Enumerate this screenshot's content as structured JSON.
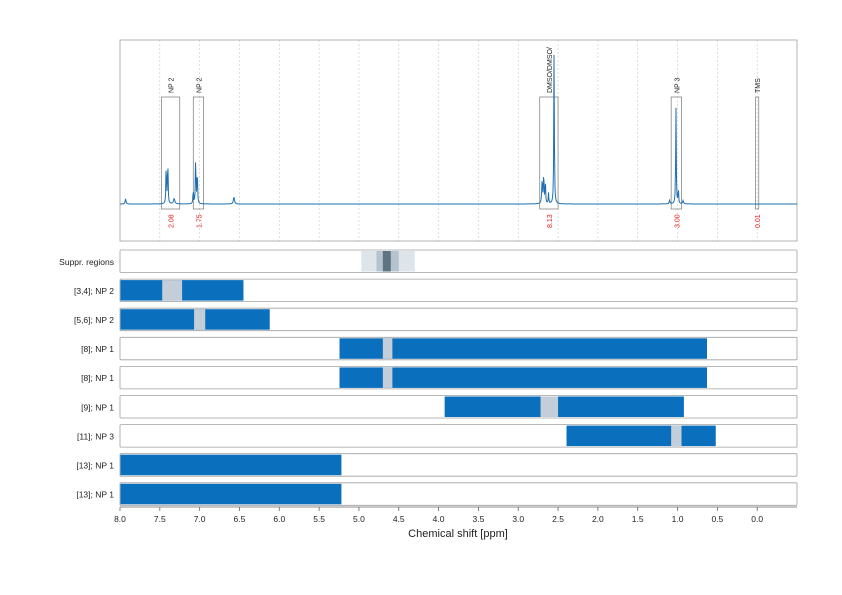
{
  "chart_data": {
    "type": "nmr_spectrum_with_range_tracks",
    "xlabel": "Chemical shift [ppm]",
    "xlim": [
      8.0,
      -0.5
    ],
    "x_reversed": true,
    "x_ticks": [
      8.0,
      7.5,
      7.0,
      6.5,
      6.0,
      5.5,
      5.0,
      4.5,
      4.0,
      3.5,
      3.0,
      2.5,
      2.0,
      1.5,
      1.0,
      0.5,
      0.0
    ],
    "x_tick_labels": [
      "8.0",
      "7.5",
      "7.0",
      "6.5",
      "6.0",
      "5.5",
      "5.0",
      "4.5",
      "4.0",
      "3.5",
      "3.0",
      "2.5",
      "2.0",
      "1.5",
      "1.0",
      "0.5",
      "0.0"
    ],
    "grid": true,
    "spectrum": {
      "color": "#1f6fb2",
      "peaks": [
        {
          "ppm": 7.93,
          "height": 0.03,
          "width": 0.006
        },
        {
          "ppm": 7.42,
          "height": 0.25,
          "width": 0.004
        },
        {
          "ppm": 7.4,
          "height": 0.28,
          "width": 0.004
        },
        {
          "ppm": 7.32,
          "height": 0.03,
          "width": 0.01
        },
        {
          "ppm": 7.08,
          "height": 0.09,
          "width": 0.004
        },
        {
          "ppm": 7.05,
          "height": 0.29,
          "width": 0.004
        },
        {
          "ppm": 7.03,
          "height": 0.22,
          "width": 0.004
        },
        {
          "ppm": 6.57,
          "height": 0.04,
          "width": 0.008
        },
        {
          "ppm": 2.7,
          "height": 0.13,
          "width": 0.006
        },
        {
          "ppm": 2.68,
          "height": 0.2,
          "width": 0.004
        },
        {
          "ppm": 2.66,
          "height": 0.14,
          "width": 0.004
        },
        {
          "ppm": 2.62,
          "height": 0.06,
          "width": 0.004
        },
        {
          "ppm": 2.55,
          "height": 0.9,
          "width": 0.004
        },
        {
          "ppm": 1.02,
          "height": 0.57,
          "width": 0.004
        },
        {
          "ppm": 0.99,
          "height": 0.09,
          "width": 0.004
        },
        {
          "ppm": 1.1,
          "height": 0.02,
          "width": 0.006
        },
        {
          "ppm": 0.93,
          "height": 0.02,
          "width": 0.006
        }
      ]
    },
    "integrals": [
      {
        "label": "NP 2",
        "from": 7.48,
        "to": 7.25,
        "value": "2.08"
      },
      {
        "label": "NP 2",
        "from": 7.08,
        "to": 6.95,
        "value": "1.75"
      },
      {
        "label": "DMSO/DMSO/",
        "from": 2.73,
        "to": 2.5,
        "value": "8.13"
      },
      {
        "label": "NP 3",
        "from": 1.08,
        "to": 0.95,
        "value": "3.00"
      },
      {
        "label": "TMS",
        "from": 0.02,
        "to": -0.02,
        "value": "0.01"
      }
    ],
    "tracks": [
      {
        "label": "Suppr. regions",
        "type": "suppression",
        "bands": [
          {
            "from": 4.97,
            "to": 4.3,
            "shade": 1
          },
          {
            "from": 4.78,
            "to": 4.5,
            "shade": 2
          },
          {
            "from": 4.7,
            "to": 4.6,
            "shade": 3
          }
        ]
      },
      {
        "label": "[3,4]; NP 2",
        "bar": [
          8.0,
          6.45
        ],
        "marker": [
          7.47,
          7.22
        ]
      },
      {
        "label": "[5,6]; NP 2",
        "bar": [
          8.0,
          6.12
        ],
        "marker": [
          7.07,
          6.93
        ]
      },
      {
        "label": "[8]; NP 1",
        "bar": [
          5.25,
          0.63
        ],
        "marker": [
          4.7,
          4.58
        ]
      },
      {
        "label": "[8]; NP 1",
        "bar": [
          5.25,
          0.63
        ],
        "marker": [
          4.7,
          4.58
        ]
      },
      {
        "label": "[9]; NP 1",
        "bar": [
          3.93,
          0.92
        ],
        "marker": [
          2.72,
          2.5
        ]
      },
      {
        "label": "[11]; NP 3",
        "bar": [
          2.4,
          0.52
        ],
        "marker": [
          1.08,
          0.95
        ]
      },
      {
        "label": "[13]; NP 1",
        "bar": [
          8.0,
          5.22
        ],
        "marker": null
      },
      {
        "label": "[13]; NP 1",
        "bar": [
          8.0,
          5.22
        ],
        "marker": null
      }
    ],
    "colors": {
      "bar": "#0a6fbd",
      "marker": "#c3ced8",
      "integral_text": "#e0201b",
      "grid": "#c8c8c8",
      "frame": "#a0a0a0",
      "supp_light": "#dde4ea",
      "supp_mid": "#b5c3cf",
      "supp_dark": "#5f7482"
    }
  }
}
